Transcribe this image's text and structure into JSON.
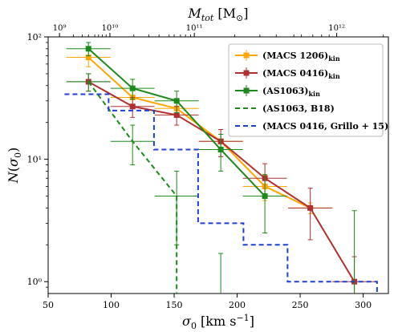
{
  "chart_data": {
    "type": "line",
    "xlabel": "σ₀ [km s⁻¹]",
    "ylabel": "N(σ₀)",
    "top_xlabel": "M_tot [M_⊙]",
    "xlim": [
      50,
      320
    ],
    "ylim": [
      0.8,
      100
    ],
    "yscale": "log",
    "x_ticks": [
      50,
      100,
      150,
      200,
      250,
      300
    ],
    "y_ticks": [
      {
        "value": 1,
        "label": "10⁰"
      },
      {
        "value": 10,
        "label": "10¹"
      },
      {
        "value": 100,
        "label": "10²"
      }
    ],
    "top_ticks": [
      {
        "sigma": 59,
        "label": "10⁹"
      },
      {
        "sigma": 99,
        "label": "10¹⁰"
      },
      {
        "sigma": 166,
        "label": "10¹¹"
      },
      {
        "sigma": 279,
        "label": "10¹²"
      }
    ],
    "top_minor_ticks": [
      70,
      77,
      82,
      87,
      90,
      93,
      96,
      118,
      130,
      138,
      146,
      150,
      155,
      159,
      163,
      198,
      218,
      231,
      245,
      251,
      260,
      267,
      273,
      316
    ],
    "grid": false,
    "legend_position": "top-right",
    "series": [
      {
        "name": "(MACS 1206)",
        "subscript": "kin",
        "color": "#ffa500",
        "style": "solid",
        "marker": "square",
        "x": [
          82,
          117,
          152,
          187,
          222,
          258
        ],
        "y": [
          68,
          32,
          26,
          14,
          6,
          4
        ],
        "yerr": [
          11,
          6,
          4,
          3.5,
          1.4,
          0.4
        ],
        "xerr": 17.5
      },
      {
        "name": "(MACS 0416)",
        "subscript": "kin",
        "color": "#b03030",
        "style": "solid",
        "marker": "square",
        "x": [
          82,
          117,
          152,
          187,
          222,
          258,
          293
        ],
        "y": [
          43,
          27,
          23,
          14,
          7,
          4,
          1
        ],
        "yerr": [
          7,
          5,
          4,
          3.5,
          2.2,
          1.8,
          0.6
        ],
        "xerr": 17.5
      },
      {
        "name": "(AS1063)",
        "subscript": "kin",
        "color": "#1a8a1a",
        "style": "solid",
        "marker": "square",
        "x": [
          82,
          117,
          152,
          187,
          222
        ],
        "y": [
          80,
          38,
          30,
          12,
          5
        ],
        "yerr": [
          10,
          7,
          6,
          4,
          2.5
        ],
        "xerr": 17.5
      },
      {
        "name": "(AS1063, B18)",
        "color": "#1a8a1a",
        "style": "dashed",
        "marker": "none",
        "x": [
          82,
          117,
          152
        ],
        "y": [
          43,
          14,
          5
        ],
        "yerr": [
          7,
          5,
          3
        ],
        "xerr": 17.5,
        "end_drop_x": 152
      },
      {
        "name": "(MACS 0416, Grillo + 15)",
        "color": "#1f3fd4",
        "style": "dashed",
        "marker": "none",
        "step": true,
        "edges": [
          63,
          98,
          134,
          169,
          205,
          240,
          276,
          311
        ],
        "values": [
          34,
          25,
          12,
          3,
          2,
          1,
          1
        ]
      }
    ],
    "vertical_bars": [
      {
        "x": 187,
        "y_top": 1.7
      },
      {
        "x": 293,
        "y_top": 3.8
      }
    ]
  }
}
